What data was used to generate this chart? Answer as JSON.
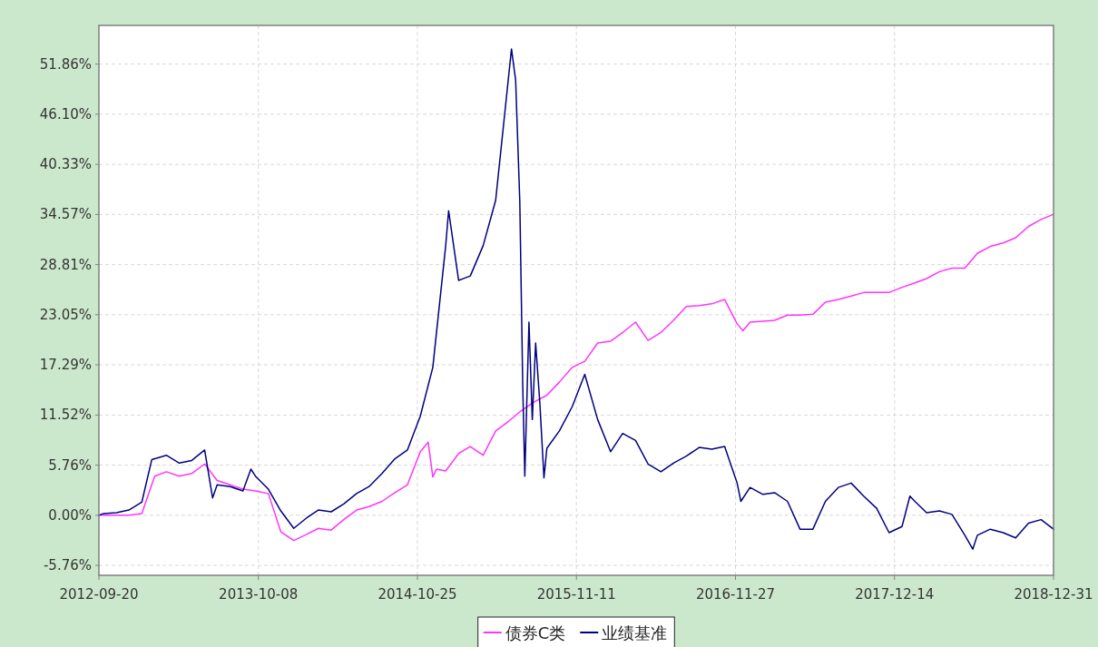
{
  "chart_data": {
    "type": "line",
    "xlim": [
      "2012-09-20",
      "2018-12-31"
    ],
    "xticks": [
      "2012-09-20",
      "2013-10-08",
      "2014-10-25",
      "2015-11-11",
      "2016-11-27",
      "2017-12-14",
      "2018-12-31"
    ],
    "ylim": [
      -6.9,
      56.3
    ],
    "yticks": [
      {
        "value": -5.76,
        "label": "-5.76%"
      },
      {
        "value": 0,
        "label": "0.00%"
      },
      {
        "value": 5.76,
        "label": "5.76%"
      },
      {
        "value": 11.52,
        "label": "11.52%"
      },
      {
        "value": 17.29,
        "label": "17.29%"
      },
      {
        "value": 23.05,
        "label": "23.05%"
      },
      {
        "value": 28.81,
        "label": "28.81%"
      },
      {
        "value": 34.57,
        "label": "34.57%"
      },
      {
        "value": 40.33,
        "label": "40.33%"
      },
      {
        "value": 46.1,
        "label": "46.10%"
      },
      {
        "value": 51.86,
        "label": "51.86%"
      }
    ],
    "grid": true,
    "legend": "bottom",
    "marker": "none",
    "line_style": "solid",
    "series": [
      {
        "name": "债券C类",
        "color": "#ff33ff",
        "x": [
          "2012-09-20",
          "2012-10-01",
          "2012-11-01",
          "2012-12-01",
          "2013-01-01",
          "2013-02-01",
          "2013-03-01",
          "2013-04-01",
          "2013-05-01",
          "2013-06-01",
          "2013-07-01",
          "2013-08-01",
          "2013-09-01",
          "2013-10-01",
          "2013-11-01",
          "2013-12-01",
          "2014-01-01",
          "2014-02-01",
          "2014-03-01",
          "2014-04-01",
          "2014-05-01",
          "2014-06-01",
          "2014-07-01",
          "2014-08-01",
          "2014-09-01",
          "2014-10-01",
          "2014-11-01",
          "2014-11-20",
          "2014-12-01",
          "2014-12-10",
          "2015-01-01",
          "2015-02-01",
          "2015-03-01",
          "2015-04-01",
          "2015-05-01",
          "2015-06-01",
          "2015-07-01",
          "2015-08-01",
          "2015-09-01",
          "2015-10-01",
          "2015-11-01",
          "2015-12-01",
          "2016-01-01",
          "2016-02-01",
          "2016-03-01",
          "2016-04-01",
          "2016-05-01",
          "2016-06-01",
          "2016-07-01",
          "2016-08-01",
          "2016-09-01",
          "2016-10-01",
          "2016-11-01",
          "2016-12-01",
          "2016-12-15",
          "2017-01-01",
          "2017-02-01",
          "2017-03-01",
          "2017-04-01",
          "2017-05-01",
          "2017-06-01",
          "2017-07-01",
          "2017-08-01",
          "2017-09-01",
          "2017-10-01",
          "2017-11-01",
          "2017-12-01",
          "2018-01-01",
          "2018-02-01",
          "2018-03-01",
          "2018-04-01",
          "2018-05-01",
          "2018-06-01",
          "2018-07-01",
          "2018-08-01",
          "2018-09-01",
          "2018-10-01",
          "2018-11-01",
          "2018-12-01",
          "2018-12-31"
        ],
        "values": [
          0,
          0,
          0,
          0,
          0.2,
          4.5,
          5.0,
          4.5,
          4.8,
          5.9,
          4.0,
          3.5,
          3.0,
          2.8,
          2.5,
          -1.9,
          -2.9,
          -2.2,
          -1.5,
          -1.7,
          -0.5,
          0.6,
          1.0,
          1.6,
          2.6,
          3.5,
          7.3,
          8.4,
          4.4,
          5.3,
          5.1,
          7.1,
          7.9,
          6.9,
          9.7,
          10.8,
          12.0,
          13.0,
          13.8,
          15.3,
          17.0,
          17.7,
          19.8,
          20.0,
          21.0,
          22.2,
          20.1,
          21.0,
          22.4,
          24.0,
          24.1,
          24.3,
          24.8,
          22.0,
          21.2,
          22.2,
          22.3,
          22.4,
          23.0,
          23.0,
          23.1,
          24.5,
          24.8,
          25.2,
          25.6,
          25.6,
          25.6,
          26.2,
          26.7,
          27.2,
          28.0,
          28.4,
          28.4,
          30.1,
          30.9,
          31.3,
          31.9,
          33.2,
          34.0,
          34.6
        ]
      },
      {
        "name": "业绩基准",
        "color": "#000080",
        "x": [
          "2012-09-20",
          "2012-10-01",
          "2012-11-01",
          "2012-12-01",
          "2013-01-01",
          "2013-01-25",
          "2013-03-01",
          "2013-04-01",
          "2013-05-01",
          "2013-06-01",
          "2013-06-20",
          "2013-07-01",
          "2013-08-01",
          "2013-09-01",
          "2013-09-20",
          "2013-10-01",
          "2013-11-01",
          "2013-12-01",
          "2014-01-01",
          "2014-02-01",
          "2014-03-01",
          "2014-04-01",
          "2014-05-01",
          "2014-06-01",
          "2014-07-01",
          "2014-08-01",
          "2014-09-01",
          "2014-10-01",
          "2014-11-01",
          "2014-12-01",
          "2015-01-01",
          "2015-01-08",
          "2015-02-01",
          "2015-03-01",
          "2015-04-01",
          "2015-05-01",
          "2015-06-08",
          "2015-06-18",
          "2015-06-28",
          "2015-07-05",
          "2015-07-10",
          "2015-07-20",
          "2015-07-28",
          "2015-08-05",
          "2015-08-15",
          "2015-08-25",
          "2015-09-01",
          "2015-10-01",
          "2015-11-01",
          "2015-12-01",
          "2016-01-01",
          "2016-02-01",
          "2016-03-01",
          "2016-04-01",
          "2016-05-01",
          "2016-06-01",
          "2016-07-01",
          "2016-08-01",
          "2016-09-01",
          "2016-10-01",
          "2016-11-01",
          "2016-12-01",
          "2016-12-10",
          "2017-01-01",
          "2017-02-01",
          "2017-03-01",
          "2017-04-01",
          "2017-05-01",
          "2017-06-01",
          "2017-07-01",
          "2017-08-01",
          "2017-09-01",
          "2017-10-01",
          "2017-11-01",
          "2017-12-01",
          "2018-01-01",
          "2018-01-20",
          "2018-02-01",
          "2018-03-01",
          "2018-04-01",
          "2018-05-01",
          "2018-06-01",
          "2018-06-20",
          "2018-07-01",
          "2018-08-01",
          "2018-09-01",
          "2018-10-01",
          "2018-11-01",
          "2018-12-01",
          "2018-12-31"
        ],
        "values": [
          0,
          0.2,
          0.3,
          0.6,
          1.5,
          6.4,
          6.9,
          6.0,
          6.3,
          7.5,
          2.0,
          3.5,
          3.3,
          2.8,
          5.3,
          4.5,
          3.0,
          0.5,
          -1.5,
          -0.3,
          0.6,
          0.4,
          1.3,
          2.5,
          3.3,
          4.8,
          6.5,
          7.5,
          11.4,
          17.0,
          31.0,
          35.0,
          27.0,
          27.5,
          31.0,
          36.2,
          53.6,
          50.0,
          36.0,
          15.0,
          4.5,
          22.2,
          11.0,
          19.8,
          13.0,
          4.3,
          7.7,
          9.7,
          12.5,
          16.2,
          11.0,
          7.3,
          9.4,
          8.6,
          5.9,
          5.0,
          6.0,
          6.8,
          7.8,
          7.6,
          7.9,
          3.7,
          1.6,
          3.2,
          2.4,
          2.6,
          1.6,
          -1.6,
          -1.6,
          1.6,
          3.2,
          3.7,
          2.2,
          0.8,
          -2.0,
          -1.3,
          2.2,
          1.6,
          0.3,
          0.5,
          0.1,
          -2.3,
          -3.9,
          -2.3,
          -1.6,
          -2.0,
          -2.6,
          -0.9,
          -0.5,
          -1.6
        ]
      }
    ]
  }
}
